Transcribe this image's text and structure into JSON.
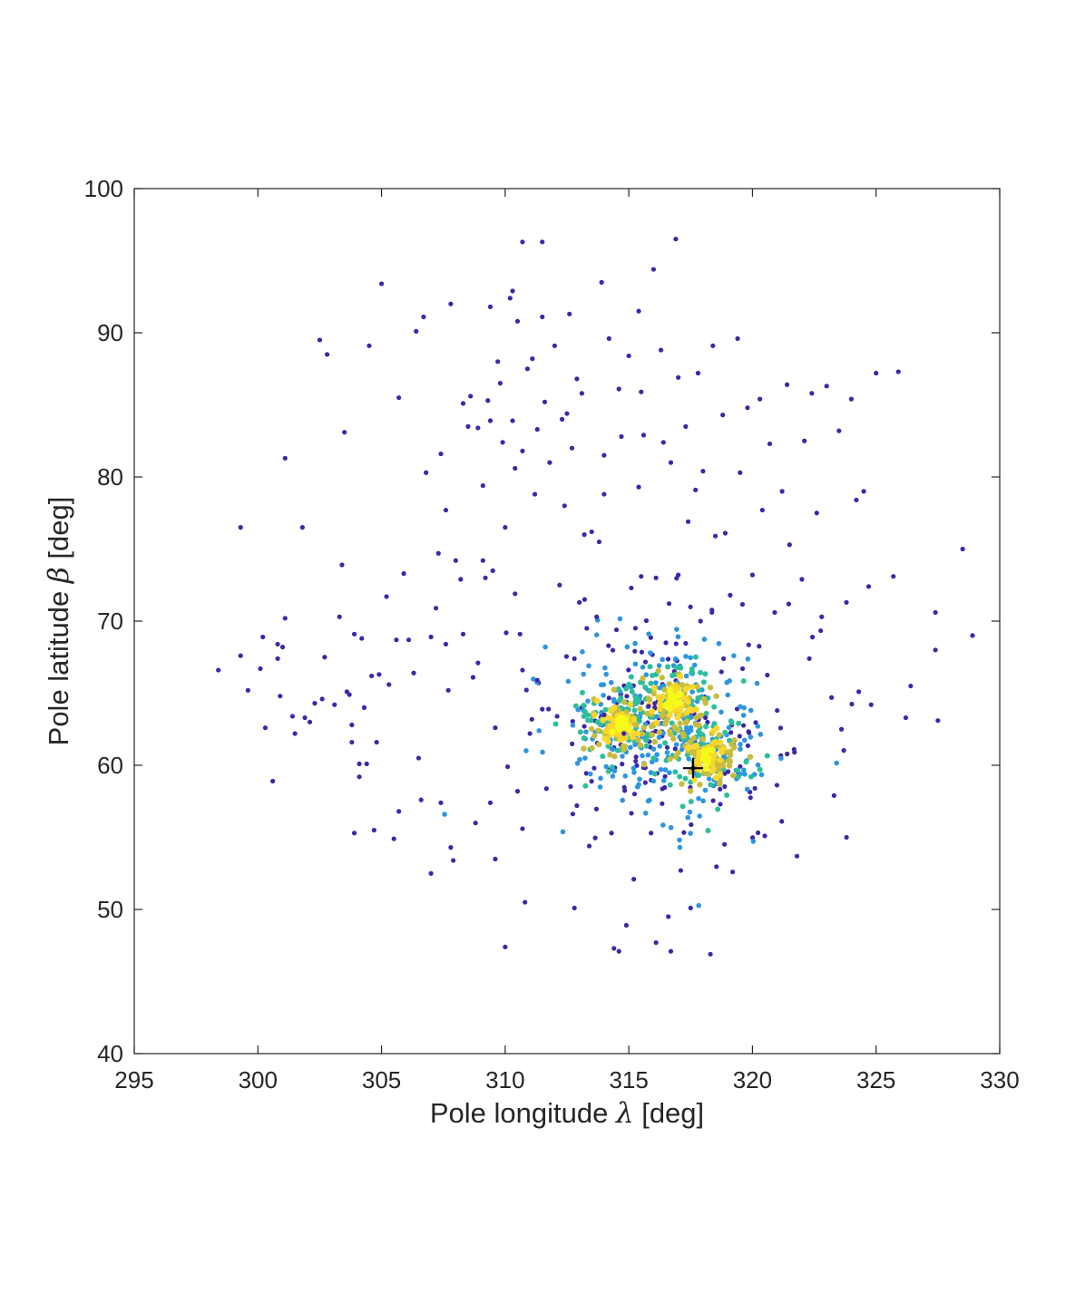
{
  "chart_data": {
    "type": "scatter",
    "title": "",
    "xlabel_parts": {
      "before": "Pole longitude ",
      "symbol": "λ",
      "after": " [deg]"
    },
    "ylabel_parts": {
      "before": "Pole latitude ",
      "symbol": "β",
      "after": " [deg]"
    },
    "xlim": [
      295,
      330
    ],
    "ylim": [
      40,
      100
    ],
    "x_ticks": [
      "295",
      "300",
      "305",
      "310",
      "315",
      "320",
      "325",
      "330"
    ],
    "y_ticks": [
      "40",
      "50",
      "60",
      "70",
      "80",
      "90",
      "100"
    ],
    "grid": false,
    "legend": "none",
    "color_encoding": "point density (blue = low, green = medium, yellow = high)",
    "colors": {
      "low": "#3d26a8",
      "mid_low": "#2c96e0",
      "mid": "#2dbe9b",
      "mid_high": "#c7bd3d",
      "high": "#f9d72c",
      "peak": "#f5fb16"
    },
    "density_clusters": [
      {
        "center": [
          314.6,
          62.8
        ],
        "peak": true
      },
      {
        "center": [
          316.8,
          64.3
        ],
        "peak": false
      },
      {
        "center": [
          318.2,
          60.6
        ],
        "peak": true
      }
    ],
    "marker": {
      "x": 317.6,
      "y": 59.8,
      "symbol": "+"
    },
    "series": [
      {
        "points": [
          [
            298.4,
            66.6
          ],
          [
            299.3,
            76.5
          ],
          [
            299.3,
            67.6
          ],
          [
            299.6,
            65.2
          ],
          [
            300.1,
            66.7
          ],
          [
            300.2,
            68.9
          ],
          [
            300.3,
            62.6
          ],
          [
            300.6,
            58.9
          ],
          [
            300.8,
            68.4
          ],
          [
            300.8,
            67.4
          ],
          [
            300.9,
            64.8
          ],
          [
            301.0,
            68.2
          ],
          [
            301.1,
            70.2
          ],
          [
            301.1,
            81.3
          ],
          [
            301.4,
            63.4
          ],
          [
            301.5,
            62.2
          ],
          [
            301.8,
            76.5
          ],
          [
            301.9,
            63.3
          ],
          [
            302.1,
            63.0
          ],
          [
            302.3,
            64.3
          ],
          [
            302.5,
            89.5
          ],
          [
            302.6,
            64.6
          ],
          [
            302.7,
            67.5
          ],
          [
            302.8,
            88.5
          ],
          [
            303.1,
            64.2
          ],
          [
            303.3,
            70.3
          ],
          [
            303.4,
            73.9
          ],
          [
            303.5,
            83.1
          ],
          [
            303.6,
            65.1
          ],
          [
            303.7,
            64.9
          ],
          [
            303.8,
            62.8
          ],
          [
            303.8,
            61.6
          ],
          [
            303.9,
            69.1
          ],
          [
            303.9,
            55.3
          ],
          [
            304.1,
            60.1
          ],
          [
            304.1,
            59.2
          ],
          [
            304.2,
            68.8
          ],
          [
            304.3,
            64.0
          ],
          [
            304.4,
            60.1
          ],
          [
            304.5,
            89.1
          ],
          [
            304.6,
            66.2
          ],
          [
            304.7,
            55.5
          ],
          [
            304.8,
            61.6
          ],
          [
            304.9,
            66.3
          ],
          [
            305.0,
            93.4
          ],
          [
            305.2,
            71.7
          ],
          [
            305.3,
            65.6
          ],
          [
            305.5,
            54.9
          ],
          [
            305.6,
            68.7
          ],
          [
            305.7,
            85.5
          ],
          [
            305.7,
            56.8
          ],
          [
            305.9,
            73.3
          ],
          [
            306.1,
            68.7
          ],
          [
            306.3,
            66.4
          ],
          [
            306.4,
            90.1
          ],
          [
            306.5,
            60.5
          ],
          [
            306.6,
            57.6
          ],
          [
            306.7,
            91.1
          ],
          [
            306.8,
            80.3
          ],
          [
            307.0,
            68.9
          ],
          [
            307.0,
            52.5
          ],
          [
            307.2,
            70.9
          ],
          [
            307.3,
            74.7
          ],
          [
            307.4,
            81.6
          ],
          [
            307.4,
            57.4
          ],
          [
            307.6,
            68.4
          ],
          [
            307.6,
            77.7
          ],
          [
            307.7,
            65.2
          ],
          [
            307.8,
            92.0
          ],
          [
            307.8,
            54.3
          ],
          [
            307.9,
            53.4
          ],
          [
            308.0,
            74.2
          ],
          [
            308.2,
            72.9
          ],
          [
            308.3,
            85.1
          ],
          [
            308.3,
            69.1
          ],
          [
            308.5,
            83.5
          ],
          [
            308.6,
            85.6
          ],
          [
            308.7,
            66.1
          ],
          [
            308.8,
            56.0
          ],
          [
            308.9,
            83.4
          ],
          [
            308.9,
            67.1
          ],
          [
            309.1,
            79.4
          ],
          [
            309.1,
            74.2
          ],
          [
            309.2,
            73.0
          ],
          [
            309.3,
            85.3
          ],
          [
            309.4,
            91.8
          ],
          [
            309.4,
            83.9
          ],
          [
            309.4,
            57.4
          ],
          [
            309.5,
            73.5
          ],
          [
            309.6,
            62.6
          ],
          [
            309.6,
            53.5
          ],
          [
            309.7,
            88.0
          ],
          [
            309.8,
            86.5
          ],
          [
            309.9,
            82.4
          ],
          [
            310.0,
            76.5
          ],
          [
            310.0,
            47.4
          ],
          [
            310.1,
            59.9
          ],
          [
            310.2,
            92.4
          ],
          [
            310.3,
            92.9
          ],
          [
            310.3,
            83.9
          ],
          [
            310.4,
            80.6
          ],
          [
            310.4,
            71.9
          ],
          [
            310.5,
            90.8
          ],
          [
            310.5,
            58.2
          ],
          [
            310.6,
            69.1
          ],
          [
            310.7,
            96.3
          ],
          [
            310.7,
            81.8
          ],
          [
            310.7,
            66.6
          ],
          [
            310.7,
            55.6
          ],
          [
            310.8,
            50.5
          ],
          [
            310.9,
            87.5
          ],
          [
            311.0,
            62.2
          ],
          [
            311.1,
            88.2
          ],
          [
            311.2,
            78.8
          ],
          [
            311.3,
            83.3
          ],
          [
            311.3,
            65.9
          ],
          [
            311.5,
            96.3
          ],
          [
            311.5,
            91.1
          ],
          [
            311.6,
            85.2
          ],
          [
            311.8,
            81.0
          ],
          [
            312.0,
            89.1
          ],
          [
            312.1,
            63.4
          ],
          [
            312.2,
            72.5
          ],
          [
            312.3,
            84.0
          ],
          [
            312.4,
            78.0
          ],
          [
            312.5,
            84.4
          ],
          [
            312.6,
            91.3
          ],
          [
            312.7,
            82.0
          ],
          [
            312.8,
            67.4
          ],
          [
            312.8,
            50.1
          ],
          [
            312.9,
            86.8
          ],
          [
            312.9,
            57.2
          ],
          [
            313.0,
            71.3
          ],
          [
            313.1,
            85.8
          ],
          [
            313.2,
            76.0
          ],
          [
            313.2,
            62.7
          ],
          [
            313.3,
            69.5
          ],
          [
            313.4,
            54.4
          ],
          [
            313.5,
            76.2
          ],
          [
            313.6,
            59.8
          ],
          [
            313.7,
            70.3
          ],
          [
            313.8,
            75.5
          ],
          [
            313.9,
            93.5
          ],
          [
            314.0,
            81.5
          ],
          [
            314.0,
            78.8
          ],
          [
            314.0,
            63.5
          ],
          [
            314.2,
            89.6
          ],
          [
            314.3,
            55.3
          ],
          [
            314.4,
            47.3
          ],
          [
            314.5,
            69.4
          ],
          [
            314.6,
            86.1
          ],
          [
            314.6,
            47.1
          ],
          [
            314.7,
            82.8
          ],
          [
            314.8,
            62.2
          ],
          [
            314.9,
            48.9
          ],
          [
            315.0,
            88.4
          ],
          [
            315.1,
            72.3
          ],
          [
            315.2,
            52.1
          ],
          [
            315.4,
            91.5
          ],
          [
            315.4,
            79.3
          ],
          [
            315.5,
            85.9
          ],
          [
            315.5,
            73.1
          ],
          [
            315.6,
            82.9
          ],
          [
            315.8,
            64.1
          ],
          [
            315.9,
            55.3
          ],
          [
            316.0,
            94.4
          ],
          [
            316.1,
            73.0
          ],
          [
            316.1,
            47.7
          ],
          [
            316.3,
            88.8
          ],
          [
            316.4,
            82.4
          ],
          [
            316.5,
            68.5
          ],
          [
            316.6,
            49.5
          ],
          [
            316.7,
            81.0
          ],
          [
            316.7,
            47.1
          ],
          [
            316.9,
            96.5
          ],
          [
            317.0,
            86.9
          ],
          [
            317.0,
            73.2
          ],
          [
            317.1,
            52.7
          ],
          [
            317.3,
            83.5
          ],
          [
            317.4,
            76.9
          ],
          [
            317.5,
            50.1
          ],
          [
            317.6,
            59.8
          ],
          [
            317.7,
            79.1
          ],
          [
            317.8,
            87.2
          ],
          [
            317.9,
            70.0
          ],
          [
            318.0,
            80.4
          ],
          [
            318.1,
            63.3
          ],
          [
            318.3,
            46.9
          ],
          [
            318.4,
            89.1
          ],
          [
            318.5,
            75.9
          ],
          [
            318.7,
            57.3
          ],
          [
            318.8,
            84.3
          ],
          [
            318.9,
            76.1
          ],
          [
            319.1,
            71.8
          ],
          [
            319.2,
            52.6
          ],
          [
            319.4,
            89.6
          ],
          [
            319.5,
            80.3
          ],
          [
            319.6,
            66.7
          ],
          [
            319.8,
            84.8
          ],
          [
            320.0,
            73.2
          ],
          [
            320.1,
            58.4
          ],
          [
            320.3,
            85.4
          ],
          [
            320.4,
            77.7
          ],
          [
            320.5,
            55.1
          ],
          [
            320.7,
            82.3
          ],
          [
            320.9,
            70.6
          ],
          [
            321.0,
            63.8
          ],
          [
            321.2,
            79.0
          ],
          [
            321.4,
            86.4
          ],
          [
            321.5,
            75.3
          ],
          [
            321.7,
            60.9
          ],
          [
            321.8,
            53.7
          ],
          [
            322.0,
            72.9
          ],
          [
            322.1,
            82.5
          ],
          [
            322.3,
            67.4
          ],
          [
            322.4,
            85.8
          ],
          [
            322.6,
            77.5
          ],
          [
            322.8,
            70.3
          ],
          [
            323.0,
            86.3
          ],
          [
            323.2,
            64.7
          ],
          [
            323.3,
            57.9
          ],
          [
            323.5,
            83.2
          ],
          [
            323.6,
            62.5
          ],
          [
            323.8,
            71.3
          ],
          [
            324.0,
            85.4
          ],
          [
            324.2,
            78.4
          ],
          [
            324.3,
            65.1
          ],
          [
            324.5,
            79.0
          ],
          [
            324.7,
            72.4
          ],
          [
            324.8,
            64.2
          ],
          [
            325.0,
            87.2
          ],
          [
            325.7,
            73.1
          ],
          [
            325.9,
            87.3
          ],
          [
            326.2,
            63.3
          ],
          [
            326.4,
            65.5
          ],
          [
            327.4,
            70.6
          ],
          [
            327.4,
            68.0
          ],
          [
            327.5,
            63.1
          ],
          [
            328.5,
            75.0
          ],
          [
            328.9,
            69.0
          ]
        ]
      }
    ]
  }
}
